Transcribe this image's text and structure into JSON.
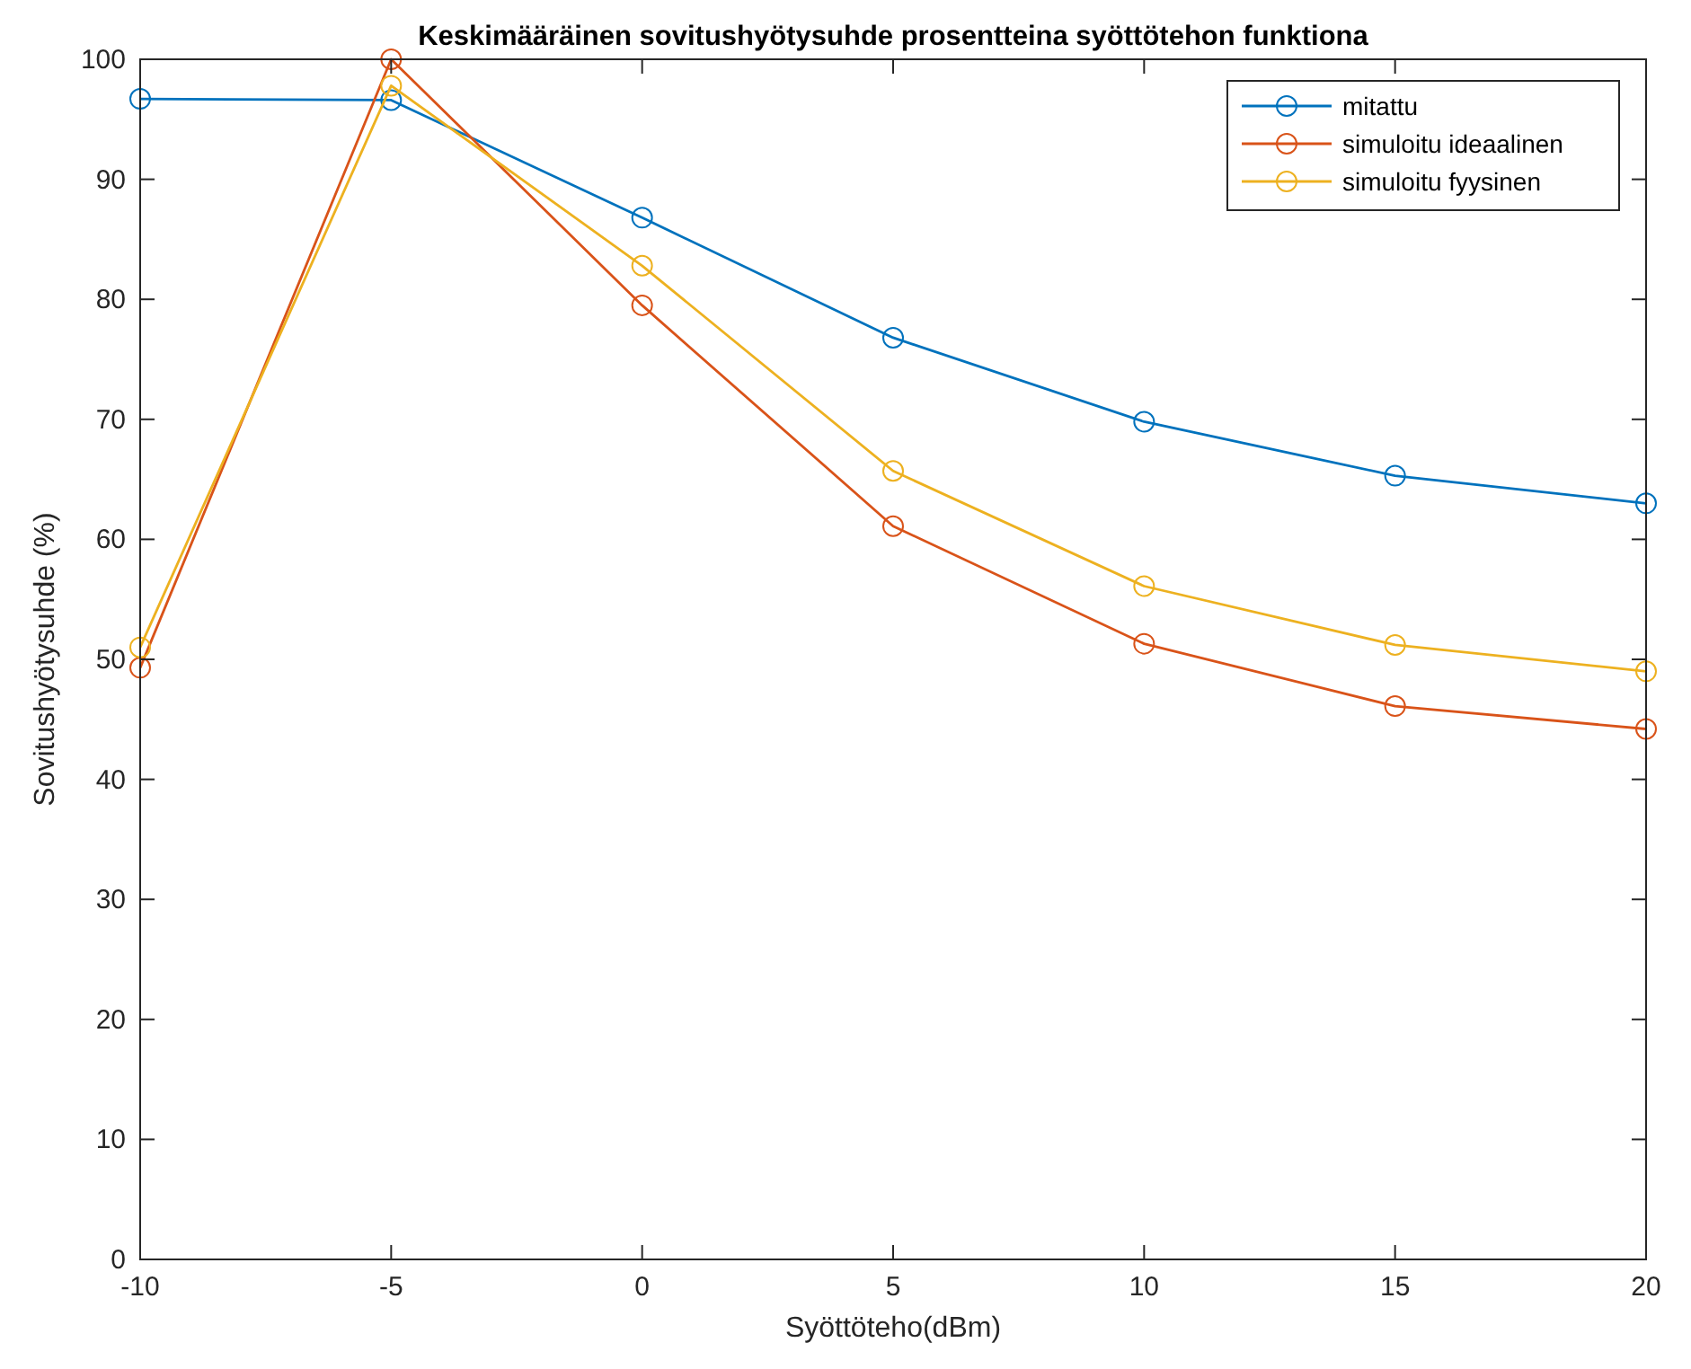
{
  "chart_data": {
    "type": "line",
    "title": "Keskimääräinen sovitushyötysuhde prosentteina syöttötehon funktiona",
    "xlabel": "Syöttöteho(dBm)",
    "ylabel": "Sovitushyötysuhde (%)",
    "x": [
      -10,
      -5,
      0,
      5,
      10,
      15,
      20
    ],
    "series": [
      {
        "name": "mitattu",
        "color": "#0072bd",
        "values": [
          96.7,
          96.6,
          86.8,
          76.8,
          69.8,
          65.3,
          63.0
        ]
      },
      {
        "name": "simuloitu ideaalinen",
        "color": "#d95319",
        "values": [
          49.3,
          100,
          79.5,
          61.1,
          51.3,
          46.1,
          44.2
        ]
      },
      {
        "name": "simuloitu fyysinen",
        "color": "#edb120",
        "values": [
          51.0,
          97.8,
          82.8,
          65.7,
          56.1,
          51.2,
          49.0
        ]
      }
    ],
    "xlim": [
      -10,
      20
    ],
    "xticks": [
      -10,
      -5,
      0,
      5,
      10,
      15,
      20
    ],
    "ylim": [
      0,
      100
    ],
    "yticks": [
      0,
      10,
      20,
      30,
      40,
      50,
      60,
      70,
      80,
      90,
      100
    ],
    "grid": false,
    "legend": "top right",
    "marker": "circle",
    "line_style": "solid"
  }
}
